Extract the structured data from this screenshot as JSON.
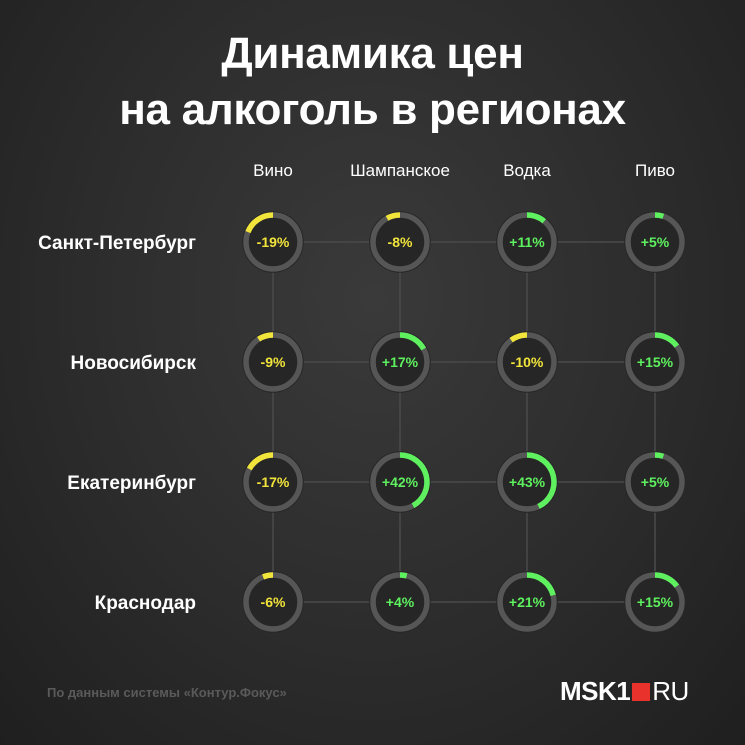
{
  "title_lines": [
    "Динамика цен",
    "на алкоголь в регионах"
  ],
  "colors": {
    "negative": "#f1e43a",
    "positive": "#5ef05e",
    "ring_track": "#565656",
    "grid_line": "#4a4a4a",
    "brand_red": "#e8322b"
  },
  "chart_data": {
    "type": "table",
    "title": "Динамика цен на алкоголь в регионах",
    "columns": [
      "Вино",
      "Шампанское",
      "Водка",
      "Пиво"
    ],
    "rows": [
      {
        "region": "Санкт-Петербург",
        "values": [
          -19,
          -8,
          11,
          5
        ],
        "labels": [
          "-19%",
          "-8%",
          "+11%",
          "+5%"
        ]
      },
      {
        "region": "Новосибирск",
        "values": [
          -9,
          17,
          -10,
          15
        ],
        "labels": [
          "-9%",
          "+17%",
          "-10%",
          "+15%"
        ]
      },
      {
        "region": "Екатеринбург",
        "values": [
          -17,
          42,
          43,
          5
        ],
        "labels": [
          "-17%",
          "+42%",
          "+43%",
          "+5%"
        ]
      },
      {
        "region": "Краснодар",
        "values": [
          -6,
          4,
          21,
          15
        ],
        "labels": [
          "-6%",
          "+4%",
          "+21%",
          "+15%"
        ]
      }
    ]
  },
  "footer": {
    "source": "По данным системы «Контур.Фокус»",
    "logo_main": "MSK1",
    "logo_ru": "RU"
  }
}
